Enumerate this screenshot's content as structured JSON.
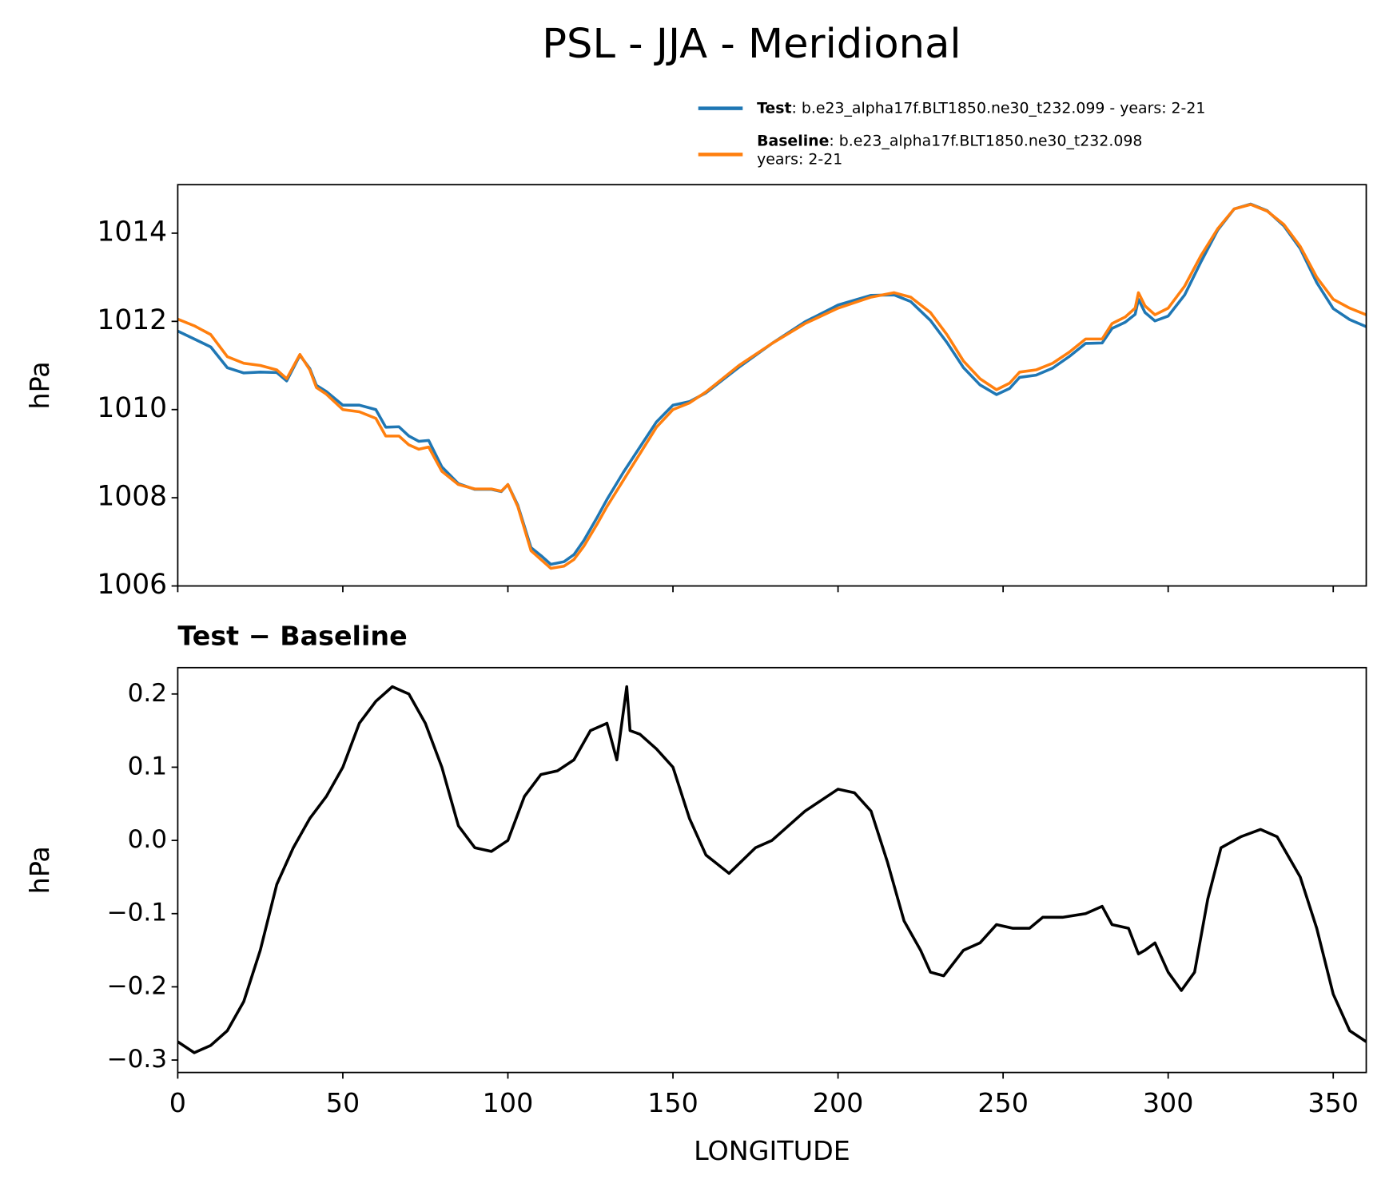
{
  "title": "PSL - JJA - Meridional",
  "chart_data": [
    {
      "type": "line",
      "ylabel": "hPa",
      "xlim": [
        0,
        360
      ],
      "ylim": [
        1006,
        1015.1
      ],
      "yticks": [
        1006,
        1008,
        1010,
        1012,
        1014
      ],
      "legend": "upper right",
      "x": [
        0,
        5,
        10,
        15,
        20,
        25,
        30,
        33,
        37,
        40,
        42,
        45,
        50,
        55,
        60,
        63,
        67,
        70,
        73,
        76,
        80,
        85,
        90,
        95,
        98,
        100,
        103,
        107,
        110,
        113,
        117,
        120,
        123,
        127,
        130,
        135,
        140,
        145,
        150,
        155,
        160,
        170,
        180,
        190,
        200,
        210,
        217,
        222,
        228,
        233,
        238,
        243,
        248,
        252,
        255,
        260,
        265,
        270,
        275,
        280,
        283,
        287,
        290,
        291,
        293,
        296,
        300,
        305,
        310,
        315,
        320,
        325,
        330,
        335,
        340,
        345,
        350,
        355,
        360
      ],
      "series": [
        {
          "name": "Test",
          "label": ": b.e23_alpha17f.BLT1850.ne30_t232.099 - years: 2-21",
          "color": "#1f77b4",
          "values": [
            1011.78,
            1011.6,
            1011.42,
            1010.95,
            1010.83,
            1010.85,
            1010.84,
            1010.65,
            1011.23,
            1010.93,
            1010.55,
            1010.41,
            1010.1,
            1010.1,
            1010.0,
            1009.6,
            1009.61,
            1009.4,
            1009.28,
            1009.3,
            1008.7,
            1008.32,
            1008.19,
            1008.19,
            1008.14,
            1008.3,
            1007.83,
            1006.87,
            1006.69,
            1006.49,
            1006.55,
            1006.71,
            1007.03,
            1007.55,
            1007.96,
            1008.58,
            1009.15,
            1009.72,
            1010.1,
            1010.18,
            1010.38,
            1010.96,
            1011.5,
            1011.99,
            1012.37,
            1012.59,
            1012.6,
            1012.45,
            1012.02,
            1011.52,
            1010.95,
            1010.56,
            1010.34,
            1010.48,
            1010.73,
            1010.78,
            1010.94,
            1011.2,
            1011.5,
            1011.51,
            1011.84,
            1011.98,
            1012.16,
            1012.5,
            1012.2,
            1012.01,
            1012.12,
            1012.6,
            1013.36,
            1014.07,
            1014.55,
            1014.66,
            1014.51,
            1014.17,
            1013.65,
            1012.88,
            1012.29,
            1012.04,
            1011.88
          ]
        },
        {
          "name": "Baseline",
          "label": [
            ": b.e23_alpha17f.BLT1850.ne30_t232.098",
            "years: 2-21"
          ],
          "color": "#ff7f0e",
          "values": [
            1012.05,
            1011.9,
            1011.7,
            1011.2,
            1011.05,
            1011.0,
            1010.9,
            1010.7,
            1011.25,
            1010.9,
            1010.5,
            1010.35,
            1010.0,
            1009.95,
            1009.8,
            1009.4,
            1009.4,
            1009.2,
            1009.1,
            1009.15,
            1008.6,
            1008.3,
            1008.2,
            1008.2,
            1008.15,
            1008.3,
            1007.8,
            1006.8,
            1006.6,
            1006.4,
            1006.45,
            1006.6,
            1006.9,
            1007.4,
            1007.8,
            1008.4,
            1009.0,
            1009.6,
            1010.0,
            1010.15,
            1010.4,
            1011.0,
            1011.5,
            1011.95,
            1012.3,
            1012.55,
            1012.65,
            1012.55,
            1012.2,
            1011.7,
            1011.1,
            1010.7,
            1010.45,
            1010.6,
            1010.85,
            1010.9,
            1011.05,
            1011.3,
            1011.6,
            1011.6,
            1011.95,
            1012.1,
            1012.3,
            1012.65,
            1012.35,
            1012.15,
            1012.3,
            1012.8,
            1013.5,
            1014.1,
            1014.55,
            1014.65,
            1014.5,
            1014.2,
            1013.7,
            1013.0,
            1012.5,
            1012.3,
            1012.15
          ]
        }
      ]
    },
    {
      "type": "line",
      "title": "Test − Baseline",
      "ylabel": "hPa",
      "xlabel": "LONGITUDE",
      "xlim": [
        0,
        360
      ],
      "ylim": [
        -0.317,
        0.236
      ],
      "xticks": [
        0,
        50,
        100,
        150,
        200,
        250,
        300,
        350
      ],
      "yticks": [
        {
          "value": -0.3,
          "label": "−0.3"
        },
        {
          "value": -0.2,
          "label": "−0.2"
        },
        {
          "value": -0.1,
          "label": "−0.1"
        },
        {
          "value": 0,
          "label": "0.0"
        },
        0.1,
        0.2
      ],
      "x": [
        0,
        5,
        10,
        15,
        20,
        25,
        30,
        35,
        40,
        45,
        50,
        55,
        60,
        65,
        70,
        75,
        80,
        85,
        90,
        95,
        100,
        105,
        110,
        115,
        120,
        125,
        130,
        133,
        136,
        137,
        140,
        145,
        150,
        155,
        160,
        167,
        175,
        180,
        190,
        200,
        205,
        210,
        215,
        220,
        225,
        228,
        232,
        238,
        243,
        248,
        253,
        258,
        262,
        268,
        275,
        280,
        283,
        288,
        291,
        293,
        296,
        300,
        304,
        308,
        312,
        316,
        322,
        328,
        333,
        340,
        345,
        350,
        355,
        360
      ],
      "series": [
        {
          "color": "#000000",
          "values": [
            -0.275,
            -0.29,
            -0.28,
            -0.26,
            -0.22,
            -0.15,
            -0.06,
            -0.01,
            0.03,
            0.06,
            0.1,
            0.16,
            0.19,
            0.21,
            0.2,
            0.16,
            0.1,
            0.02,
            -0.01,
            -0.015,
            0.0,
            0.06,
            0.09,
            0.095,
            0.11,
            0.15,
            0.16,
            0.11,
            0.21,
            0.15,
            0.145,
            0.125,
            0.1,
            0.03,
            -0.02,
            -0.045,
            -0.01,
            0.0,
            0.04,
            0.07,
            0.065,
            0.04,
            -0.03,
            -0.11,
            -0.15,
            -0.18,
            -0.185,
            -0.15,
            -0.14,
            -0.115,
            -0.12,
            -0.12,
            -0.105,
            -0.105,
            -0.1,
            -0.09,
            -0.115,
            -0.12,
            -0.155,
            -0.15,
            -0.14,
            -0.18,
            -0.205,
            -0.18,
            -0.08,
            -0.01,
            0.005,
            0.015,
            0.005,
            -0.05,
            -0.12,
            -0.21,
            -0.26,
            -0.275
          ]
        }
      ]
    }
  ]
}
